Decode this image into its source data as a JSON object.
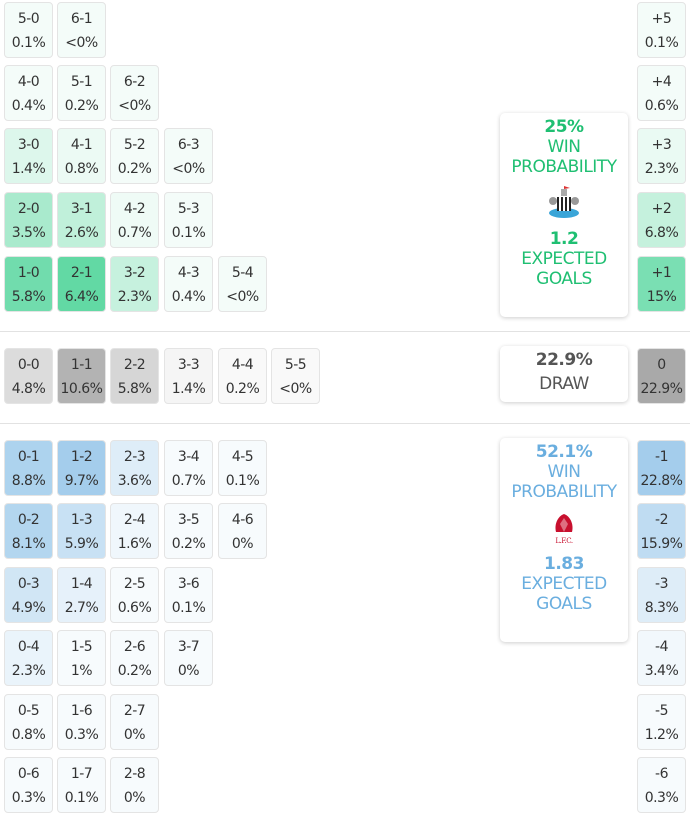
{
  "colors": {
    "home": "#2dcc86",
    "away": "#6aaee0",
    "draw": "#8a8a8a",
    "home_text": "#1fbf72",
    "away_text": "#6aaedf",
    "draw_text": "#555555"
  },
  "home_scores": [
    [
      {
        "s": "5-0",
        "p": "0.1%"
      },
      {
        "s": "6-1",
        "p": "<0%"
      }
    ],
    [
      {
        "s": "4-0",
        "p": "0.4%"
      },
      {
        "s": "5-1",
        "p": "0.2%"
      },
      {
        "s": "6-2",
        "p": "<0%"
      }
    ],
    [
      {
        "s": "3-0",
        "p": "1.4%"
      },
      {
        "s": "4-1",
        "p": "0.8%"
      },
      {
        "s": "5-2",
        "p": "0.2%"
      },
      {
        "s": "6-3",
        "p": "<0%"
      }
    ],
    [
      {
        "s": "2-0",
        "p": "3.5%"
      },
      {
        "s": "3-1",
        "p": "2.6%"
      },
      {
        "s": "4-2",
        "p": "0.7%"
      },
      {
        "s": "5-3",
        "p": "0.1%"
      }
    ],
    [
      {
        "s": "1-0",
        "p": "5.8%"
      },
      {
        "s": "2-1",
        "p": "6.4%"
      },
      {
        "s": "3-2",
        "p": "2.3%"
      },
      {
        "s": "4-3",
        "p": "0.4%"
      },
      {
        "s": "5-4",
        "p": "<0%"
      }
    ]
  ],
  "draw_scores": [
    {
      "s": "0-0",
      "p": "4.8%"
    },
    {
      "s": "1-1",
      "p": "10.6%"
    },
    {
      "s": "2-2",
      "p": "5.8%"
    },
    {
      "s": "3-3",
      "p": "1.4%"
    },
    {
      "s": "4-4",
      "p": "0.2%"
    },
    {
      "s": "5-5",
      "p": "<0%"
    }
  ],
  "away_scores": [
    [
      {
        "s": "0-1",
        "p": "8.8%"
      },
      {
        "s": "1-2",
        "p": "9.7%"
      },
      {
        "s": "2-3",
        "p": "3.6%"
      },
      {
        "s": "3-4",
        "p": "0.7%"
      },
      {
        "s": "4-5",
        "p": "0.1%"
      }
    ],
    [
      {
        "s": "0-2",
        "p": "8.1%"
      },
      {
        "s": "1-3",
        "p": "5.9%"
      },
      {
        "s": "2-4",
        "p": "1.6%"
      },
      {
        "s": "3-5",
        "p": "0.2%"
      },
      {
        "s": "4-6",
        "p": "0%"
      }
    ],
    [
      {
        "s": "0-3",
        "p": "4.9%"
      },
      {
        "s": "1-4",
        "p": "2.7%"
      },
      {
        "s": "2-5",
        "p": "0.6%"
      },
      {
        "s": "3-6",
        "p": "0.1%"
      }
    ],
    [
      {
        "s": "0-4",
        "p": "2.3%"
      },
      {
        "s": "1-5",
        "p": "1%"
      },
      {
        "s": "2-6",
        "p": "0.2%"
      },
      {
        "s": "3-7",
        "p": "0%"
      }
    ],
    [
      {
        "s": "0-5",
        "p": "0.8%"
      },
      {
        "s": "1-6",
        "p": "0.3%"
      },
      {
        "s": "2-7",
        "p": "0%"
      }
    ],
    [
      {
        "s": "0-6",
        "p": "0.3%"
      },
      {
        "s": "1-7",
        "p": "0.1%"
      },
      {
        "s": "2-8",
        "p": "0%"
      }
    ]
  ],
  "home_margins": [
    {
      "s": "+5",
      "p": "0.1%"
    },
    {
      "s": "+4",
      "p": "0.6%"
    },
    {
      "s": "+3",
      "p": "2.3%"
    },
    {
      "s": "+2",
      "p": "6.8%"
    },
    {
      "s": "+1",
      "p": "15%"
    }
  ],
  "draw_margin": {
    "s": "0",
    "p": "22.9%"
  },
  "away_margins": [
    {
      "s": "-1",
      "p": "22.8%"
    },
    {
      "s": "-2",
      "p": "15.9%"
    },
    {
      "s": "-3",
      "p": "8.3%"
    },
    {
      "s": "-4",
      "p": "3.4%"
    },
    {
      "s": "-5",
      "p": "1.2%"
    },
    {
      "s": "-6",
      "p": "0.3%"
    }
  ],
  "home_summary": {
    "win": "25%",
    "win_label_1": "WIN",
    "win_label_2": "PROBABILITY",
    "xg": "1.2",
    "xg_label_1": "EXPECTED",
    "xg_label_2": "GOALS",
    "logo": "newcastle-crest"
  },
  "draw_summary": {
    "value": "22.9%",
    "label": "DRAW"
  },
  "away_summary": {
    "win": "52.1%",
    "win_label_1": "WIN",
    "win_label_2": "PROBABILITY",
    "xg": "1.83",
    "xg_label_1": "EXPECTED",
    "xg_label_2": "GOALS",
    "logo": "liverpool-crest"
  }
}
